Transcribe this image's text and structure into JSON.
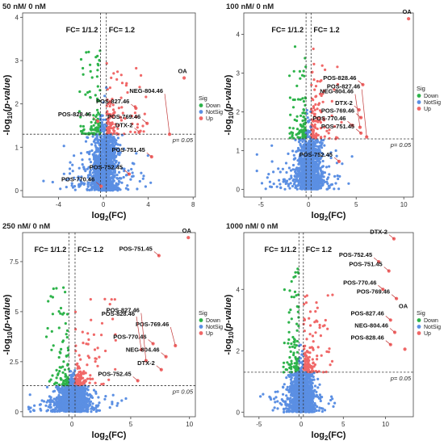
{
  "colors": {
    "down": "#2db34a",
    "notsig": "#5b8fe3",
    "up": "#f06767"
  },
  "legend": {
    "title": "Sig",
    "entries": [
      {
        "label": "Down",
        "color": "#2db34a"
      },
      {
        "label": "NotSig",
        "color": "#5b8fe3"
      },
      {
        "label": "Up",
        "color": "#f06767"
      }
    ]
  },
  "chart_data": [
    {
      "type": "scatter",
      "title": "50 nM/ 0 nM",
      "xlabel": "log2(FC)",
      "ylabel": "-log10(p-value)",
      "xlim": [
        -7.2,
        8.2
      ],
      "ylim": [
        -0.15,
        4.1
      ],
      "xticks": [
        -4,
        0,
        4,
        8
      ],
      "yticks": [
        0,
        1,
        2,
        3,
        4
      ],
      "fc_lines": [
        -0.263,
        0.263
      ],
      "fc_labels": [
        "FC= 1/1.2",
        "FC= 1.2"
      ],
      "p_line": 1.3,
      "p_label": "p= 0.05",
      "annotations": [
        {
          "label": "OA",
          "x": 7.2,
          "y": 2.6
        },
        {
          "label": "POS-827.46",
          "x": 2.9,
          "y": 1.9
        },
        {
          "label": "POS-828.46",
          "x": -0.5,
          "y": 1.6
        },
        {
          "label": "POS-769.46",
          "x": 3.9,
          "y": 1.55
        },
        {
          "label": "DTX-2",
          "x": 3.2,
          "y": 1.35
        },
        {
          "label": "NEG-804.46",
          "x": 5.9,
          "y": 1.3
        },
        {
          "label": "POS-751.45",
          "x": 4.3,
          "y": 0.78
        },
        {
          "label": "POS-752.45",
          "x": 2.3,
          "y": 0.38
        },
        {
          "label": "POS-770.46",
          "x": -0.2,
          "y": 0.1
        }
      ]
    },
    {
      "type": "scatter",
      "title": "100 nM/ 0 nM",
      "xlabel": "log2(FC)",
      "ylabel": "-log10(p-value)",
      "xlim": [
        -6.8,
        11.0
      ],
      "ylim": [
        -0.2,
        4.55
      ],
      "xticks": [
        -5,
        0,
        5,
        10
      ],
      "yticks": [
        0,
        1,
        2,
        3,
        4
      ],
      "fc_lines": [
        -0.263,
        0.263
      ],
      "fc_labels": [
        "FC= 1/1.2",
        "FC= 1.2"
      ],
      "p_line": 1.3,
      "p_label": "p= 0.05",
      "annotations": [
        {
          "label": "OA",
          "x": 10.5,
          "y": 4.4
        },
        {
          "label": "POS-828.46",
          "x": 5.7,
          "y": 2.7
        },
        {
          "label": "DTX-2",
          "x": 5.3,
          "y": 2.05
        },
        {
          "label": "POS-769.46",
          "x": 5.5,
          "y": 1.85
        },
        {
          "label": "POS-770.46",
          "x": 4.6,
          "y": 1.65
        },
        {
          "label": "NEG-804.46",
          "x": 5.4,
          "y": 1.6
        },
        {
          "label": "POS-751.45",
          "x": 5.5,
          "y": 1.45
        },
        {
          "label": "POS-827.46",
          "x": 6.1,
          "y": 1.35
        },
        {
          "label": "POS-752.45",
          "x": 3.2,
          "y": 0.72
        }
      ]
    },
    {
      "type": "scatter",
      "title": "250 nM/ 0 nM",
      "xlabel": "log2(FC)",
      "ylabel": "-log10(p-value)",
      "xlim": [
        -4.2,
        10.5
      ],
      "ylim": [
        -0.25,
        8.95
      ],
      "xticks": [
        0,
        5,
        10
      ],
      "yticks": [
        0,
        2.5,
        5,
        7.5
      ],
      "fc_lines": [
        -0.263,
        0.263
      ],
      "fc_labels": [
        "FC= 1/1.2",
        "FC= 1.2"
      ],
      "p_line": 1.3,
      "p_label": "p= 0.05",
      "annotations": [
        {
          "label": "OA",
          "x": 9.9,
          "y": 8.7
        },
        {
          "label": "POS-751.45",
          "x": 7.4,
          "y": 7.8
        },
        {
          "label": "POS-770.46",
          "x": 6.9,
          "y": 3.4
        },
        {
          "label": "POS-769.46",
          "x": 8.8,
          "y": 3.3
        },
        {
          "label": "POS-828.46",
          "x": 5.9,
          "y": 3.1
        },
        {
          "label": "NEG-804.46",
          "x": 8.0,
          "y": 2.75
        },
        {
          "label": "POS-827.46",
          "x": 6.3,
          "y": 2.55
        },
        {
          "label": "DTX-2",
          "x": 7.6,
          "y": 2.1
        },
        {
          "label": "POS-752.45",
          "x": 5.6,
          "y": 1.55
        }
      ]
    },
    {
      "type": "scatter",
      "title": "1000 nM/ 0 nM",
      "xlabel": "log2(FC)",
      "ylabel": "-log10(p-value)",
      "xlim": [
        -6.8,
        13.3
      ],
      "ylim": [
        -0.15,
        5.85
      ],
      "xticks": [
        -5,
        0,
        5,
        10
      ],
      "yticks": [
        0,
        2,
        4
      ],
      "fc_lines": [
        -0.263,
        0.263
      ],
      "fc_labels": [
        "FC= 1/1.2",
        "FC= 1.2"
      ],
      "p_line": 1.3,
      "p_label": "p= 0.05",
      "annotations": [
        {
          "label": "DTX-2",
          "x": 11.0,
          "y": 5.65
        },
        {
          "label": "POS-752.45",
          "x": 9.2,
          "y": 4.9
        },
        {
          "label": "POS-751.45",
          "x": 10.4,
          "y": 4.6
        },
        {
          "label": "POS-770.46",
          "x": 9.7,
          "y": 4.0
        },
        {
          "label": "POS-769.46",
          "x": 11.3,
          "y": 3.7
        },
        {
          "label": "POS-827.46",
          "x": 10.6,
          "y": 3.0
        },
        {
          "label": "NEG-804.46",
          "x": 11.1,
          "y": 2.6
        },
        {
          "label": "POS-828.46",
          "x": 10.6,
          "y": 2.2
        },
        {
          "label": "OA",
          "x": 12.3,
          "y": 2.05
        }
      ]
    }
  ]
}
